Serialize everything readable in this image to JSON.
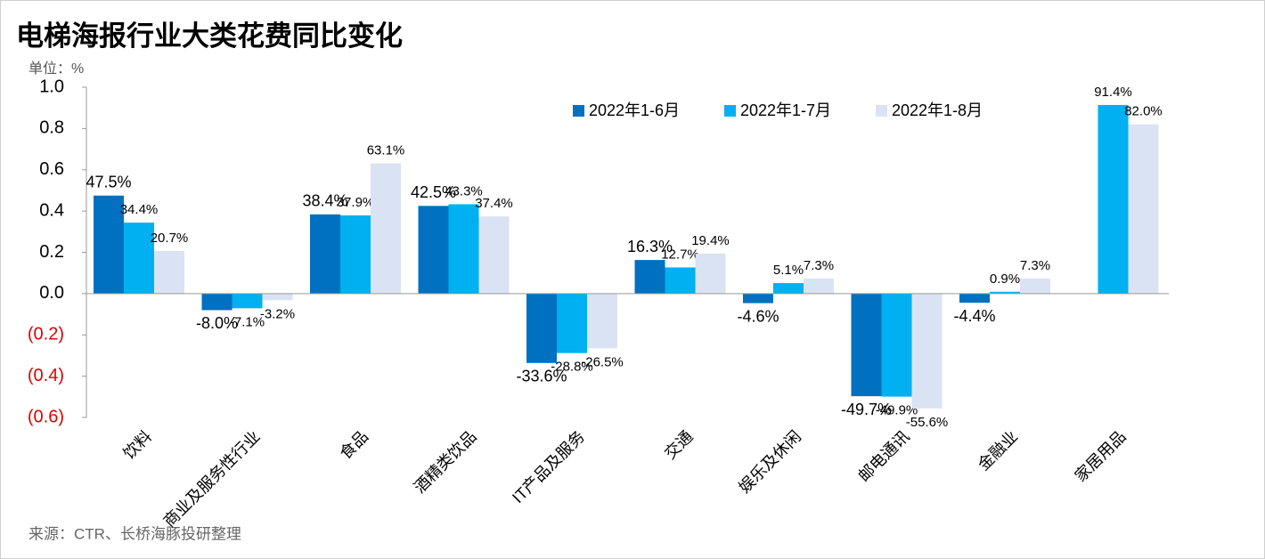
{
  "chart_data": {
    "type": "bar",
    "title": "电梯海报行业大类花费同比变化",
    "unit_label": "单位：%",
    "source": "来源：CTR、长桥海豚投研整理",
    "categories": [
      "饮料",
      "商业及服务性行业",
      "食品",
      "酒精类饮品",
      "IT产品及服务",
      "交通",
      "娱乐及休闲",
      "邮电通讯",
      "金融业",
      "家居用品"
    ],
    "series": [
      {
        "name": "2022年1-6月",
        "color": "#0070c0",
        "values": [
          0.475,
          -0.08,
          0.384,
          0.425,
          -0.336,
          0.163,
          -0.046,
          -0.497,
          -0.044,
          null
        ],
        "value_labels": [
          "47.5%",
          "-8.0%",
          "38.4%",
          "42.5%",
          "-33.6%",
          "16.3%",
          "-4.6%",
          "-49.7%",
          "-4.4%",
          null
        ]
      },
      {
        "name": "2022年1-7月",
        "color": "#00b0f0",
        "values": [
          0.344,
          -0.071,
          0.379,
          0.433,
          -0.288,
          0.127,
          0.051,
          -0.499,
          0.009,
          0.914
        ],
        "value_labels": [
          "34.4%",
          "-7.1%",
          "37.9%",
          "43.3%",
          "-28.8%",
          "12.7%",
          "5.1%",
          "-49.9%",
          "0.9%",
          "91.4%"
        ]
      },
      {
        "name": "2022年1-8月",
        "color": "#dae3f3",
        "values": [
          0.207,
          -0.032,
          0.631,
          0.374,
          -0.265,
          0.194,
          0.073,
          -0.556,
          0.073,
          0.82
        ],
        "value_labels": [
          "20.7%",
          "-3.2%",
          "63.1%",
          "37.4%",
          "-26.5%",
          "19.4%",
          "7.3%",
          "-55.6%",
          "7.3%",
          "82.0%"
        ]
      }
    ],
    "ylim": [
      -0.6,
      1.0
    ],
    "yticks": [
      {
        "value": 1.0,
        "label": "1.0"
      },
      {
        "value": 0.8,
        "label": "0.8"
      },
      {
        "value": 0.6,
        "label": "0.6"
      },
      {
        "value": 0.4,
        "label": "0.4"
      },
      {
        "value": 0.2,
        "label": "0.2"
      },
      {
        "value": 0.0,
        "label": "0.0"
      },
      {
        "value": -0.2,
        "label": "(0.2)"
      },
      {
        "value": -0.4,
        "label": "(0.4)"
      },
      {
        "value": -0.6,
        "label": "(0.6)"
      }
    ],
    "negative_tick_color": "#e00000",
    "legend": "top-right"
  }
}
